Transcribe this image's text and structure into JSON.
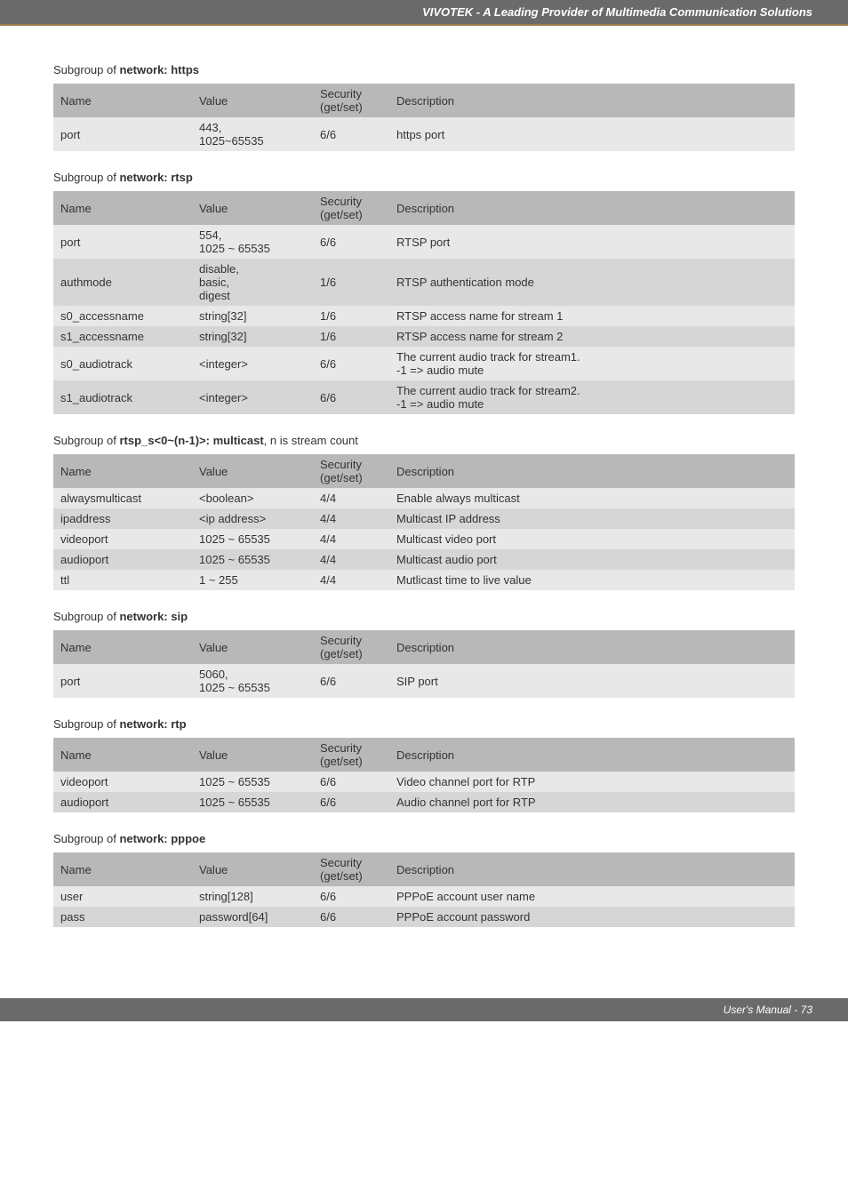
{
  "header": {
    "title": "VIVOTEK - A Leading Provider of Multimedia Communication Solutions"
  },
  "footer": {
    "text": "User's Manual - 73"
  },
  "sections": [
    {
      "caption_prefix": "Subgroup of ",
      "caption_bold": "network: https",
      "caption_suffix": "",
      "columns": [
        "Name",
        "Value",
        "Security (get/set)",
        "Description"
      ],
      "rows": [
        {
          "cells": [
            "port",
            "443,\n1025~65535",
            "6/6",
            "https port"
          ]
        }
      ]
    },
    {
      "caption_prefix": "Subgroup of ",
      "caption_bold": "network: rtsp",
      "caption_suffix": "",
      "columns": [
        "Name",
        "Value",
        "Security (get/set)",
        "Description"
      ],
      "rows": [
        {
          "cells": [
            "port",
            "554,\n1025 ~ 65535",
            "6/6",
            "RTSP port"
          ]
        },
        {
          "cells": [
            "authmode",
            "disable,\nbasic,\ndigest",
            "1/6",
            "RTSP authentication mode"
          ]
        },
        {
          "cells": [
            "s0_accessname",
            "string[32]",
            "1/6",
            "RTSP access name for stream 1"
          ]
        },
        {
          "cells": [
            "s1_accessname",
            "string[32]",
            "1/6",
            "RTSP access name for stream 2"
          ]
        },
        {
          "cells": [
            "s0_audiotrack",
            "<integer>",
            "6/6",
            "The current audio track for stream1.\n-1 => audio mute"
          ]
        },
        {
          "cells": [
            "s1_audiotrack",
            "<integer>",
            "6/6",
            "The current audio track for stream2.\n-1 => audio mute"
          ]
        }
      ]
    },
    {
      "caption_prefix": "Subgroup of ",
      "caption_bold": "rtsp_s<0~(n-1)>: multicast",
      "caption_suffix": ", n is stream count",
      "columns": [
        "Name",
        "Value",
        "Security (get/set)",
        "Description"
      ],
      "rows": [
        {
          "cells": [
            "alwaysmulticast",
            "<boolean>",
            "4/4",
            "Enable always multicast"
          ]
        },
        {
          "cells": [
            "ipaddress",
            "<ip address>",
            "4/4",
            "Multicast IP address"
          ]
        },
        {
          "cells": [
            "videoport",
            "1025 ~ 65535",
            "4/4",
            "Multicast video port"
          ]
        },
        {
          "cells": [
            "audioport",
            "1025 ~ 65535",
            "4/4",
            "Multicast audio port"
          ]
        },
        {
          "cells": [
            "ttl",
            "1 ~ 255",
            "4/4",
            "Mutlicast time to live value"
          ]
        }
      ]
    },
    {
      "caption_prefix": "Subgroup of ",
      "caption_bold": "network: sip",
      "caption_suffix": "",
      "columns": [
        "Name",
        "Value",
        "Security (get/set)",
        "Description"
      ],
      "rows": [
        {
          "cells": [
            "port",
            "5060,\n1025 ~ 65535",
            "6/6",
            "SIP port"
          ]
        }
      ]
    },
    {
      "caption_prefix": "Subgroup of ",
      "caption_bold": "network: rtp",
      "caption_suffix": "",
      "columns": [
        "Name",
        "Value",
        "Security (get/set)",
        "Description"
      ],
      "rows": [
        {
          "cells": [
            "videoport",
            "1025 ~ 65535",
            "6/6",
            "Video channel port for RTP"
          ]
        },
        {
          "cells": [
            "audioport",
            "1025 ~ 65535",
            "6/6",
            "Audio channel port for RTP"
          ]
        }
      ]
    },
    {
      "caption_prefix": "Subgroup of ",
      "caption_bold": "network: pppoe",
      "caption_suffix": "",
      "columns": [
        "Name",
        "Value",
        "Security (get/set)",
        "Description"
      ],
      "rows": [
        {
          "cells": [
            "user",
            "string[128]",
            "6/6",
            "PPPoE account user name"
          ]
        },
        {
          "cells": [
            "pass",
            "password[64]",
            "6/6",
            "PPPoE account password"
          ]
        }
      ]
    }
  ]
}
